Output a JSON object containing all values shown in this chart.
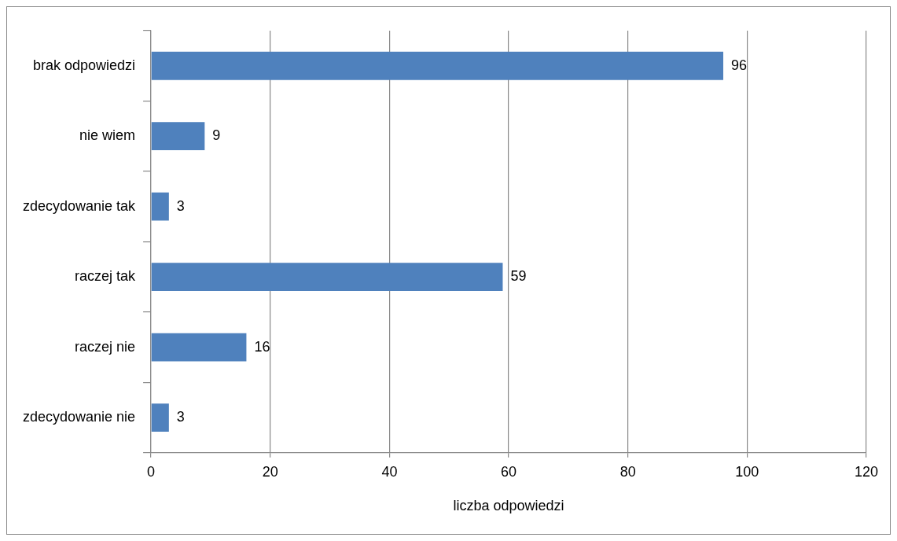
{
  "chart_data": {
    "type": "bar",
    "orientation": "horizontal",
    "xlabel": "liczba odpowiedzi",
    "categories": [
      "brak odpowiedzi",
      "nie wiem",
      "zdecydowanie tak",
      "raczej tak",
      "raczej nie",
      "zdecydowanie nie"
    ],
    "values": [
      96,
      9,
      3,
      59,
      16,
      3
    ],
    "color": "#4f81bd",
    "xlim": [
      0,
      120
    ],
    "xticks": [
      0,
      20,
      40,
      60,
      80,
      100,
      120
    ],
    "grid": "x",
    "data_labels": true,
    "legend": false
  }
}
